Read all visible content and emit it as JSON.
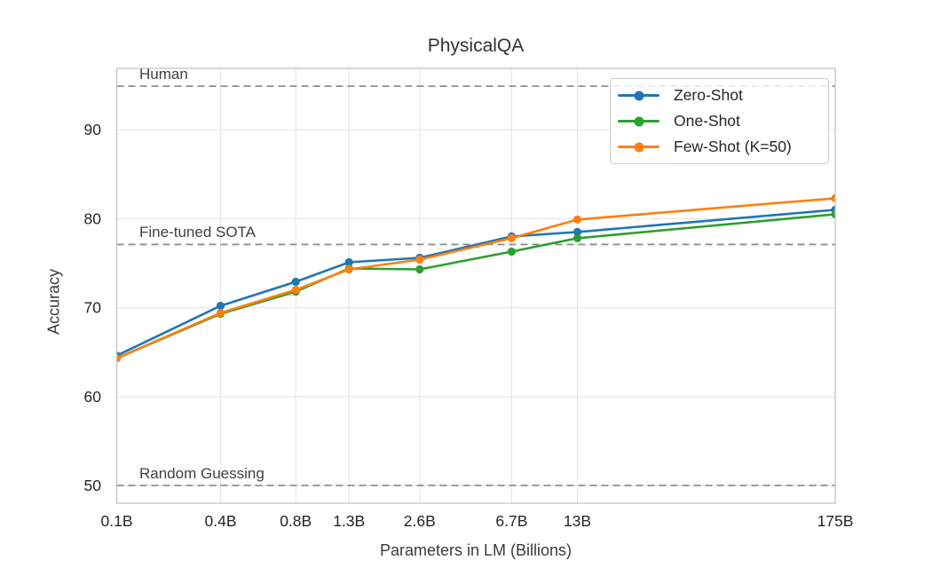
{
  "chart_data": {
    "type": "line",
    "title": "PhysicalQA",
    "xlabel": "Parameters in LM (Billions)",
    "ylabel": "Accuracy",
    "x_scale": "log",
    "categories": [
      "0.1B",
      "0.4B",
      "0.8B",
      "1.3B",
      "2.6B",
      "6.7B",
      "13B",
      "175B"
    ],
    "x_values_billions": [
      0.125,
      0.356,
      0.76,
      1.3,
      2.65,
      6.7,
      13,
      175
    ],
    "y_ticks": [
      50,
      60,
      70,
      80,
      90
    ],
    "ylim": [
      48,
      97
    ],
    "grid": true,
    "legend_position": "upper right",
    "series": [
      {
        "name": "Zero-Shot",
        "color": "#1f77b4",
        "values": [
          64.6,
          70.2,
          72.9,
          75.1,
          75.6,
          78.0,
          78.5,
          81.0
        ]
      },
      {
        "name": "One-Shot",
        "color": "#2ca02c",
        "values": [
          64.3,
          69.3,
          71.8,
          74.4,
          74.3,
          76.3,
          77.8,
          80.5
        ]
      },
      {
        "name": "Few-Shot (K=50)",
        "color": "#ff7f0e",
        "values": [
          64.3,
          69.4,
          72.0,
          74.3,
          75.4,
          77.8,
          79.9,
          82.3
        ]
      }
    ],
    "reference_lines": [
      {
        "label": "Human",
        "value": 94.9
      },
      {
        "label": "Fine-tuned SOTA",
        "value": 77.1
      },
      {
        "label": "Random Guessing",
        "value": 50.0
      }
    ],
    "colors": {
      "reference": "#8f8f8f",
      "grid": "#e8e8e8",
      "spine": "#c4c4c4",
      "text": "#262626"
    }
  }
}
